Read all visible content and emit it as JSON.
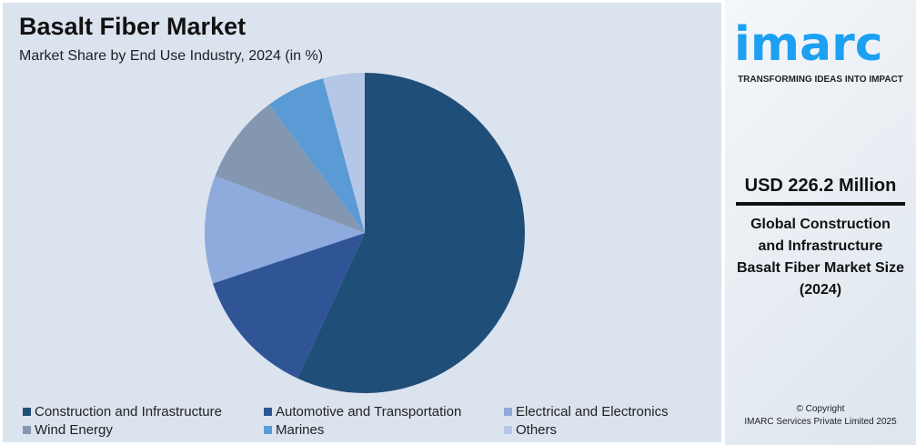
{
  "header": {
    "title": "Basalt Fiber Market",
    "subtitle": "Market Share by End Use Industry, 2024 (in %)"
  },
  "chart_data": {
    "type": "pie",
    "title": "Basalt Fiber Market",
    "subtitle": "Market Share by End Use Industry, 2024 (in %)",
    "categories": [
      "Construction and Infrastructure",
      "Automotive and Transportation",
      "Electrical and Electronics",
      "Wind Energy",
      "Marines",
      "Others"
    ],
    "values": [
      56.9,
      13.0,
      10.9,
      9.0,
      6.0,
      4.2
    ],
    "colors": [
      "#1f4e79",
      "#2f5597",
      "#8faadc",
      "#8497b0",
      "#5b9bd5",
      "#b4c7e7"
    ],
    "legend": "bottom"
  },
  "sidebar": {
    "logo": "imarc",
    "tagline": "TRANSFORMING IDEAS INTO IMPACT",
    "value": "USD 226.2 Million",
    "description_lines": [
      "Global Construction",
      "and Infrastructure",
      "Basalt Fiber Market Size",
      "(2024)"
    ],
    "copyright_lines": [
      "© Copyright",
      "IMARC Services Private Limited 2025"
    ]
  }
}
